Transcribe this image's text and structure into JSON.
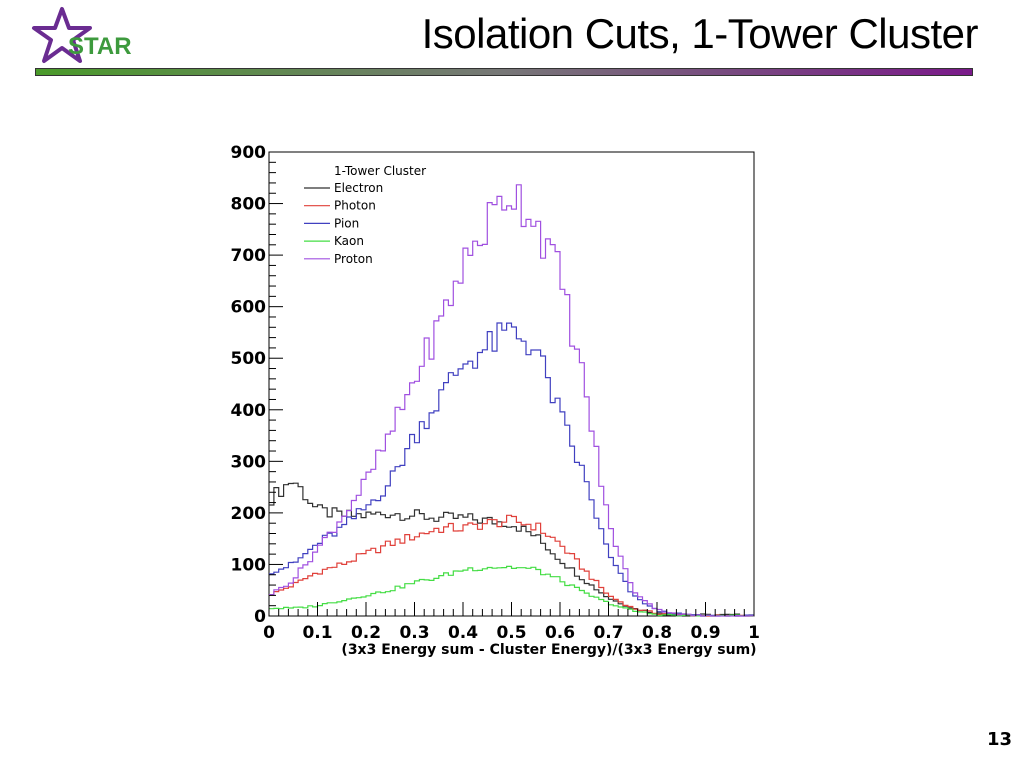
{
  "slide": {
    "title": "Isolation Cuts, 1-Tower Cluster",
    "logo_text": "STAR",
    "page_number": "13"
  },
  "colors": {
    "logo_star": "#6a2c91",
    "logo_text": "#3d9a3d",
    "bar_start": "#4a9a2a",
    "bar_end": "#7a1a8a"
  },
  "chart_data": {
    "type": "line",
    "style": "step-histogram",
    "xlabel": "(3x3 Energy sum - Cluster Energy)/(3x3 Energy sum)",
    "ylabel": "",
    "xlim": [
      0,
      1
    ],
    "ylim": [
      0,
      900
    ],
    "xticks": [
      0,
      0.1,
      0.2,
      0.3,
      0.4,
      0.5,
      0.6,
      0.7,
      0.8,
      0.9,
      1
    ],
    "xtick_labels": [
      "0",
      "0.1",
      "0.2",
      "0.3",
      "0.4",
      "0.5",
      "0.6",
      "0.7",
      "0.8",
      "0.9",
      "1"
    ],
    "yticks": [
      0,
      100,
      200,
      300,
      400,
      500,
      600,
      700,
      800,
      900
    ],
    "ytick_labels": [
      "0",
      "100",
      "200",
      "300",
      "400",
      "500",
      "600",
      "700",
      "800",
      "900"
    ],
    "grid": false,
    "legend_title": "1-Tower Cluster",
    "legend_position": "top-left",
    "bin_width": 0.01,
    "x": [
      0.0,
      0.05,
      0.1,
      0.15,
      0.2,
      0.25,
      0.3,
      0.35,
      0.4,
      0.45,
      0.5,
      0.55,
      0.6,
      0.65,
      0.7,
      0.75,
      0.8,
      0.85,
      0.9,
      0.95,
      1.0
    ],
    "series": [
      {
        "name": "Electron",
        "color": "#303030",
        "values": [
          225,
          265,
          205,
          195,
          195,
          200,
          195,
          190,
          190,
          185,
          180,
          155,
          110,
          70,
          35,
          15,
          5,
          3,
          2,
          2,
          2
        ]
      },
      {
        "name": "Photon",
        "color": "#e0403a",
        "values": [
          40,
          60,
          85,
          100,
          120,
          140,
          155,
          170,
          170,
          180,
          185,
          175,
          140,
          90,
          40,
          15,
          5,
          2,
          0,
          0,
          0
        ]
      },
      {
        "name": "Pion",
        "color": "#4040c0",
        "values": [
          85,
          100,
          140,
          170,
          210,
          260,
          350,
          420,
          490,
          520,
          555,
          520,
          390,
          270,
          120,
          40,
          10,
          3,
          0,
          0,
          0
        ]
      },
      {
        "name": "Kaon",
        "color": "#44dd44",
        "values": [
          15,
          15,
          20,
          30,
          40,
          50,
          65,
          75,
          90,
          95,
          95,
          90,
          70,
          45,
          25,
          10,
          3,
          1,
          0,
          0,
          0
        ]
      },
      {
        "name": "Proton",
        "color": "#a050e0",
        "values": [
          40,
          70,
          130,
          190,
          260,
          350,
          460,
          560,
          680,
          760,
          830,
          770,
          660,
          450,
          180,
          50,
          12,
          3,
          0,
          0,
          0
        ]
      }
    ]
  }
}
